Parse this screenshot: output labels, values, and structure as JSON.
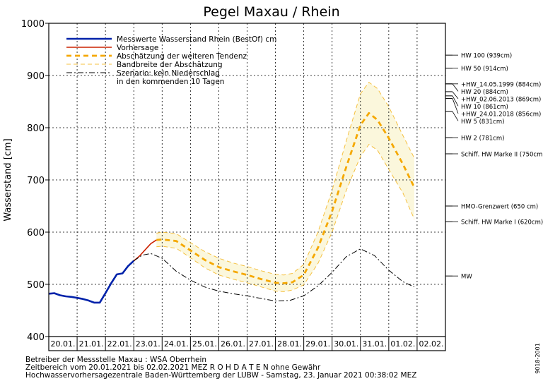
{
  "chart_data": {
    "type": "line",
    "title": "Pegel Maxau / Rhein",
    "ylabel": "Wasserstand [cm]",
    "xlabel": "",
    "ylim": [
      400,
      1000
    ],
    "yticks": [
      400,
      500,
      600,
      700,
      800,
      900,
      1000
    ],
    "x_tick_labels": [
      "20.01.",
      "21.01.",
      "22.01.",
      "23.01.",
      "24.01.",
      "25.01.",
      "26.01.",
      "27.01.",
      "28.01.",
      "29.01.",
      "30.01.",
      "31.01.",
      "01.02.",
      "02.02."
    ],
    "grid": true,
    "legend_position": "top-left",
    "legend": [
      {
        "label": "Messwerte Wasserstand Rhein (BestOf)   cm",
        "color": "#0022aa",
        "style": "solid-thick"
      },
      {
        "label": "Vorhersage",
        "color": "#cc2200",
        "style": "solid"
      },
      {
        "label": "Abschätzung der weiteren Tendenz",
        "color": "#f5a800",
        "style": "dashed-thick"
      },
      {
        "label": "Bandbreite der Abschätzung",
        "color": "#f5c040",
        "style": "dashed-thin"
      },
      {
        "label": "Szenario: kein Niederschlag",
        "color": "#000000",
        "style": "dashdot"
      },
      {
        "label": "in den kommenden 10 Tagen",
        "color": "",
        "style": "none"
      }
    ],
    "series": [
      {
        "name": "Messwerte Wasserstand Rhein (BestOf)",
        "color": "#0022aa",
        "x": [
          0,
          0.2,
          0.4,
          0.6,
          0.8,
          1.0,
          1.2,
          1.4,
          1.6,
          1.8,
          2.0,
          2.2,
          2.4,
          2.6,
          2.8,
          3.0
        ],
        "values": [
          482,
          483,
          479,
          477,
          476,
          474,
          472,
          469,
          465,
          465,
          483,
          502,
          519,
          521,
          535,
          545
        ]
      },
      {
        "name": "Vorhersage",
        "color": "#cc2200",
        "x": [
          3.0,
          3.2,
          3.4,
          3.6,
          3.8
        ],
        "values": [
          545,
          554,
          566,
          578,
          585
        ]
      },
      {
        "name": "Abschätzung der weiteren Tendenz",
        "color": "#f5a800",
        "x": [
          3.8,
          4.0,
          4.5,
          5.0,
          5.5,
          6.0,
          6.5,
          7.0,
          7.5,
          8.0,
          8.3,
          8.6,
          9.0,
          9.5,
          10.0,
          10.5,
          11.0,
          11.3,
          11.6,
          12.0,
          12.5,
          12.9
        ],
        "values": [
          585,
          586,
          583,
          565,
          547,
          533,
          525,
          518,
          510,
          503,
          502,
          504,
          518,
          570,
          640,
          725,
          805,
          828,
          815,
          780,
          730,
          686
        ]
      },
      {
        "name": "Bandbreite der Abschätzung (oben)",
        "color": "#f5c040",
        "x": [
          3.8,
          4.0,
          4.5,
          5.0,
          5.5,
          6.0,
          6.5,
          7.0,
          7.5,
          8.0,
          8.3,
          8.6,
          9.0,
          9.5,
          10.0,
          10.5,
          11.0,
          11.3,
          11.6,
          12.0,
          12.5,
          12.9
        ],
        "values": [
          598,
          600,
          597,
          580,
          563,
          550,
          541,
          534,
          526,
          519,
          518,
          521,
          538,
          600,
          680,
          775,
          865,
          887,
          875,
          840,
          785,
          742
        ]
      },
      {
        "name": "Bandbreite der Abschätzung (unten)",
        "color": "#f5c040",
        "x": [
          3.8,
          4.0,
          4.5,
          5.0,
          5.5,
          6.0,
          6.5,
          7.0,
          7.5,
          8.0,
          8.3,
          8.6,
          9.0,
          9.5,
          10.0,
          10.5,
          11.0,
          11.3,
          11.6,
          12.0,
          12.5,
          12.9
        ],
        "values": [
          572,
          573,
          569,
          551,
          532,
          518,
          510,
          503,
          495,
          487,
          486,
          489,
          499,
          540,
          600,
          680,
          745,
          768,
          757,
          720,
          675,
          625
        ]
      },
      {
        "name": "Szenario: kein Niederschlag",
        "color": "#000000",
        "x": [
          3.0,
          3.3,
          3.6,
          4.0,
          4.5,
          5.0,
          5.5,
          6.0,
          6.5,
          7.0,
          7.5,
          8.0,
          8.5,
          9.0,
          9.5,
          10.0,
          10.5,
          11.0,
          11.5,
          12.0,
          12.5,
          12.9
        ],
        "values": [
          545,
          556,
          559,
          550,
          525,
          508,
          495,
          487,
          482,
          478,
          473,
          468,
          469,
          478,
          497,
          523,
          553,
          568,
          555,
          527,
          505,
          495
        ]
      }
    ],
    "reference_lines": [
      {
        "label": "HW 100 (939cm)",
        "value": 939
      },
      {
        "label": "HW 50 (914cm)",
        "value": 914
      },
      {
        "label": "+HW_14.05.1999 (884cm)",
        "value": 884
      },
      {
        "label": "HW 20 (884cm)",
        "value": 884
      },
      {
        "label": "+HW_02.06.2013 (869cm)",
        "value": 869
      },
      {
        "label": "HW 10 (861cm)",
        "value": 861
      },
      {
        "label": "+HW_24.01.2018 (856cm)",
        "value": 856
      },
      {
        "label": "HW 5 (831cm)",
        "value": 831
      },
      {
        "label": "HW 2 (781cm)",
        "value": 781
      },
      {
        "label": "Schiff. HW Marke II (750cm)",
        "value": 750
      },
      {
        "label": "HMO-Grenzwert (650 cm)",
        "value": 650
      },
      {
        "label": "Schiff. HW Marke I (620cm)",
        "value": 620
      },
      {
        "label": "MW",
        "value": 516
      }
    ]
  },
  "footer": {
    "line1": "Betreiber der Messstelle Maxau : WSA Oberrhein",
    "line2": "Zeitbereich vom 20.01.2021 bis 02.02.2021     MEZ     R O H D A T E N ohne Gewähr",
    "line3": "Hochwasservorhersagezentrale Baden-Württemberg der LUBW - Samstag, 23. Januar 2021 00:38:02 MEZ"
  },
  "side_code": "9018-2001"
}
